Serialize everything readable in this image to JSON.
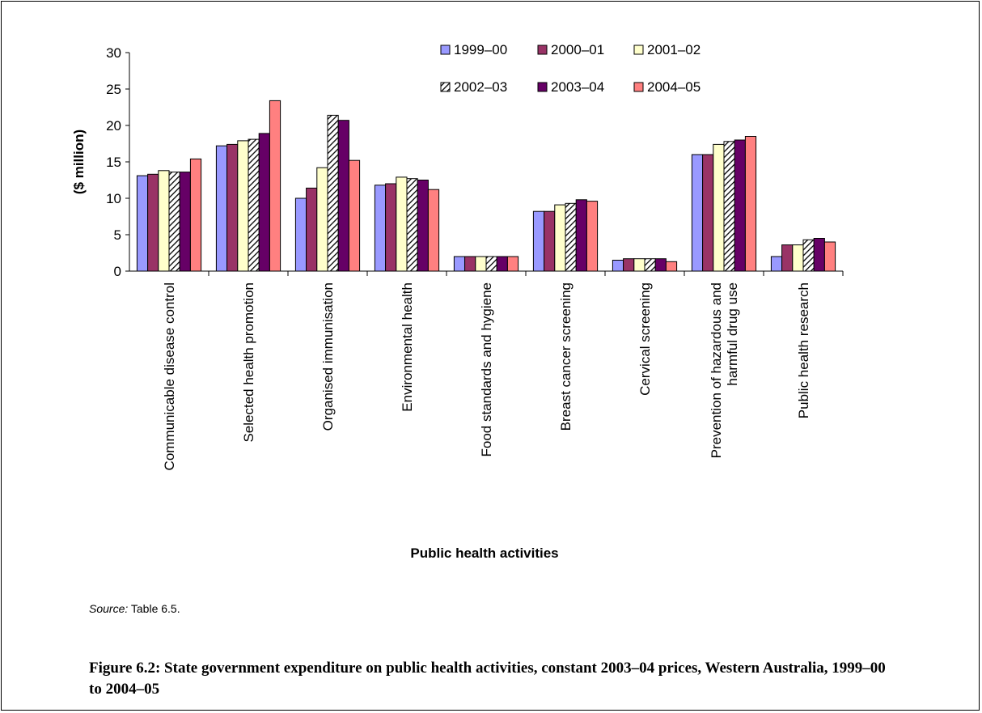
{
  "chart_data": {
    "type": "bar",
    "ylabel": "($ million)",
    "xlabel": "Public health activities",
    "ylim": [
      0,
      30
    ],
    "yticks": [
      0,
      5,
      10,
      15,
      20,
      25,
      30
    ],
    "grid": false,
    "legend_position": "top-right",
    "categories": [
      "Communicable disease control",
      "Selected health promotion",
      "Organised immunisation",
      "Environmental health",
      "Food standards and hygiene",
      "Breast cancer screening",
      "Cervical screening",
      "Prevention of hazardous and harmful drug use",
      "Public health research"
    ],
    "category_lines": [
      [
        "Communicable disease control"
      ],
      [
        "Selected health promotion"
      ],
      [
        "Organised immunisation"
      ],
      [
        "Environmental health"
      ],
      [
        "Food standards and hygiene"
      ],
      [
        "Breast cancer screening"
      ],
      [
        "Cervical screening"
      ],
      [
        "Prevention of hazardous and",
        "harmful drug use"
      ],
      [
        "Public health research"
      ]
    ],
    "series": [
      {
        "name": "1999–00",
        "color": "#9999ff",
        "pattern": "solid",
        "values": [
          13.1,
          17.2,
          10.0,
          11.8,
          2.0,
          8.2,
          1.5,
          16.0,
          2.0
        ]
      },
      {
        "name": "2000–01",
        "color": "#993366",
        "pattern": "solid",
        "values": [
          13.3,
          17.4,
          11.4,
          12.0,
          2.0,
          8.2,
          1.7,
          16.0,
          3.6
        ]
      },
      {
        "name": "2001–02",
        "color": "#ffffcc",
        "pattern": "solid",
        "values": [
          13.8,
          17.9,
          14.2,
          12.9,
          2.0,
          9.1,
          1.7,
          17.4,
          3.6
        ]
      },
      {
        "name": "2002–03",
        "color": "#ffffff",
        "pattern": "hatch",
        "values": [
          13.6,
          18.1,
          21.4,
          12.7,
          2.0,
          9.3,
          1.7,
          17.8,
          4.3
        ]
      },
      {
        "name": "2003–04",
        "color": "#660066",
        "pattern": "solid",
        "values": [
          13.6,
          18.9,
          20.7,
          12.5,
          2.0,
          9.8,
          1.7,
          18.0,
          4.5
        ]
      },
      {
        "name": "2004–05",
        "color": "#ff8080",
        "pattern": "solid",
        "values": [
          15.4,
          23.4,
          15.2,
          11.2,
          2.0,
          9.6,
          1.3,
          18.5,
          4.0
        ]
      }
    ]
  },
  "source": {
    "label": "Source:",
    "text": " Table 6.5."
  },
  "caption": "Figure 6.2: State government expenditure on public health activities, constant 2003–04 prices, Western Australia, 1999–00 to 2004–05"
}
